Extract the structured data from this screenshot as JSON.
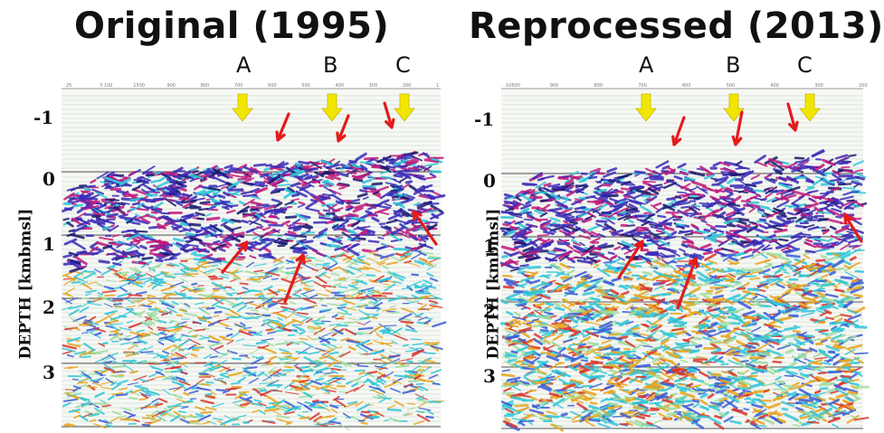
{
  "titles": {
    "left": "Original (1995)",
    "right": "Reprocessed (2013)"
  },
  "y_axis_label": "DEPTH [kmbmsl]",
  "depth_ticks": [
    "-1",
    "0",
    "1",
    "2",
    "3"
  ],
  "markers": [
    "A",
    "B",
    "C"
  ],
  "colors": {
    "yellow_arrow": "#f2e600",
    "red_arrow": "#e41b1b"
  },
  "left_panel": {
    "top_axis_labels": [
      "25",
      "3 100",
      "1500",
      "900",
      "800",
      "700",
      "600",
      "500",
      "400",
      "300",
      "200",
      "1"
    ]
  },
  "right_panel": {
    "top_axis_labels": [
      "10600",
      "900",
      "800",
      "700",
      "600",
      "500",
      "400",
      "300",
      "200"
    ]
  }
}
